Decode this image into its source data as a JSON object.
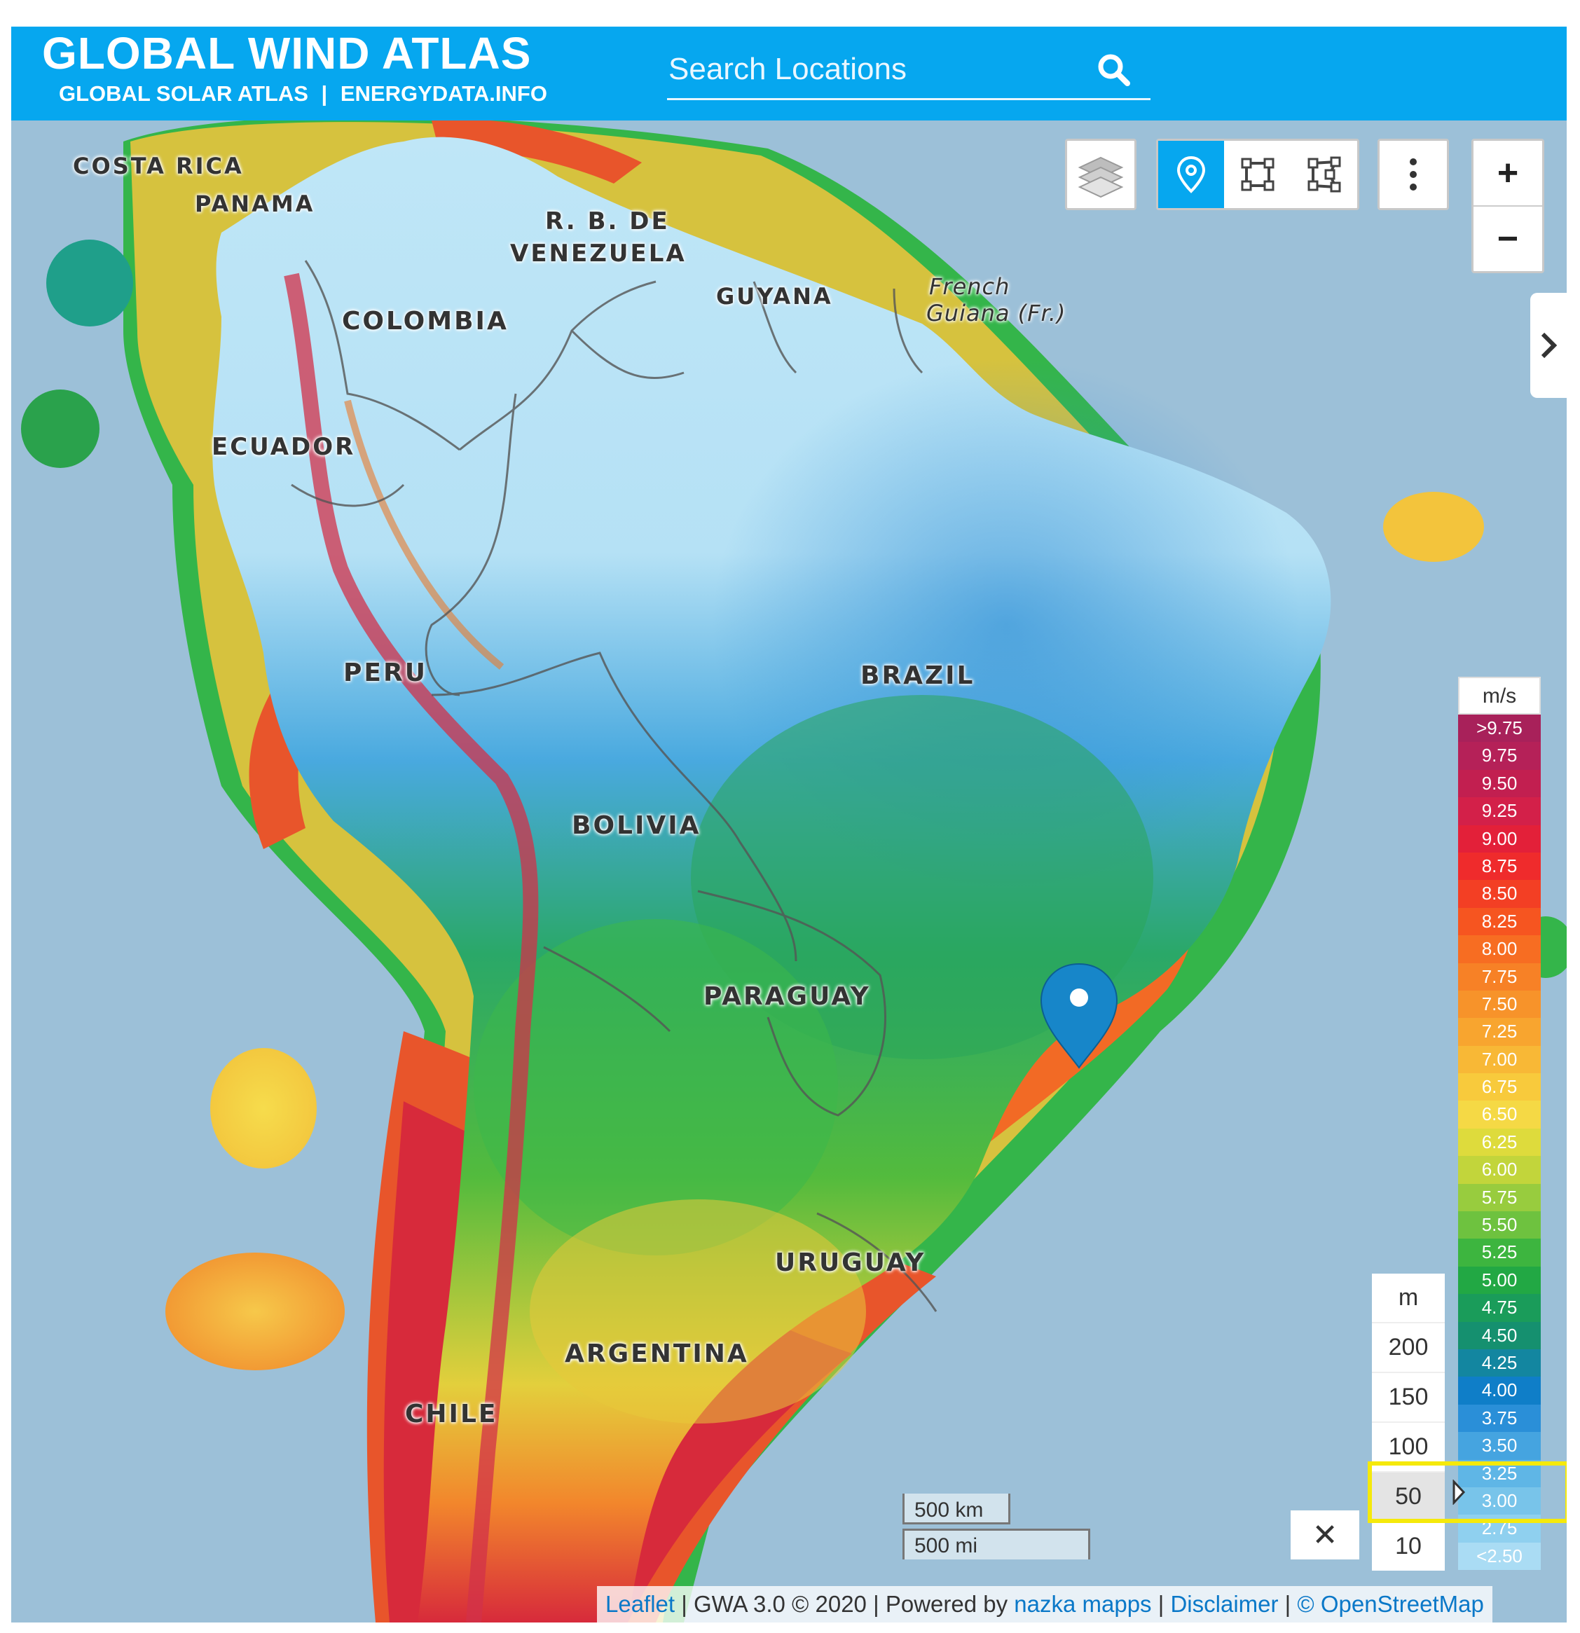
{
  "header": {
    "title": "GLOBAL WIND ATLAS",
    "links": [
      "GLOBAL SOLAR ATLAS",
      "ENERGYDATA.INFO"
    ],
    "separator": "|",
    "search_placeholder": "Search Locations"
  },
  "colors": {
    "header": "#06a7ef",
    "ocean": "#9cc0d8",
    "highlight": "#f5e90b"
  },
  "map": {
    "countries": [
      "COSTA RICA",
      "PANAMA",
      "R. B. DE",
      "VENEZUELA",
      "GUYANA",
      "French",
      "Guiana (Fr.)",
      "COLOMBIA",
      "ECUADOR",
      "PERU",
      "BRAZIL",
      "BOLIVIA",
      "PARAGUAY",
      "URUGUAY",
      "ARGENTINA",
      "CHILE"
    ],
    "marker": "map-pin"
  },
  "toolbar": {
    "icons": [
      "layers-icon",
      "point-pin-icon",
      "rectangle-select-icon",
      "polygon-select-icon",
      "more-vertical-icon"
    ],
    "zoom_in": "+",
    "zoom_out": "−",
    "side_toggle": "›"
  },
  "legend": {
    "unit": "m/s",
    "entries": [
      {
        "label": ">9.75",
        "color": "#a8215a"
      },
      {
        "label": "9.75",
        "color": "#b52158"
      },
      {
        "label": "9.50",
        "color": "#c21f50"
      },
      {
        "label": "9.25",
        "color": "#d32049"
      },
      {
        "label": "9.00",
        "color": "#e32039"
      },
      {
        "label": "8.75",
        "color": "#ef2b2c"
      },
      {
        "label": "8.50",
        "color": "#f33f24"
      },
      {
        "label": "8.25",
        "color": "#f65520"
      },
      {
        "label": "8.00",
        "color": "#f76d22"
      },
      {
        "label": "7.75",
        "color": "#f78126"
      },
      {
        "label": "7.50",
        "color": "#f7932a"
      },
      {
        "label": "7.25",
        "color": "#f8a52f"
      },
      {
        "label": "7.00",
        "color": "#f8b836"
      },
      {
        "label": "6.75",
        "color": "#f8ca3c"
      },
      {
        "label": "6.50",
        "color": "#f5d945"
      },
      {
        "label": "6.25",
        "color": "#dedb3c"
      },
      {
        "label": "6.00",
        "color": "#c2d53b"
      },
      {
        "label": "5.75",
        "color": "#98cc3e"
      },
      {
        "label": "5.50",
        "color": "#6ec23f"
      },
      {
        "label": "5.25",
        "color": "#3db53f"
      },
      {
        "label": "5.00",
        "color": "#22a844"
      },
      {
        "label": "4.75",
        "color": "#1a9c5a"
      },
      {
        "label": "4.50",
        "color": "#15906f"
      },
      {
        "label": "4.25",
        "color": "#1386a0"
      },
      {
        "label": "4.00",
        "color": "#0f7ec8"
      },
      {
        "label": "3.75",
        "color": "#2a8fd8"
      },
      {
        "label": "3.50",
        "color": "#45a4e0"
      },
      {
        "label": "3.25",
        "color": "#5fb6e6"
      },
      {
        "label": "3.00",
        "color": "#78c4ea"
      },
      {
        "label": "2.75",
        "color": "#8fd0ef"
      },
      {
        "label": "<2.50",
        "color": "#aadcf4"
      }
    ]
  },
  "height": {
    "unit": "m",
    "options": [
      "200",
      "150",
      "100",
      "50",
      "10"
    ],
    "selected": "50"
  },
  "close_label": "✕",
  "scale": {
    "km": "500 km",
    "mi": "500 mi"
  },
  "attribution": {
    "leaflet": "Leaflet",
    "sep": "|",
    "gwa": "GWA 3.0 © 2020",
    "powered": "Powered by",
    "nazka": "nazka mapps",
    "disclaimer": "Disclaimer",
    "osm": "© OpenStreetMap"
  }
}
